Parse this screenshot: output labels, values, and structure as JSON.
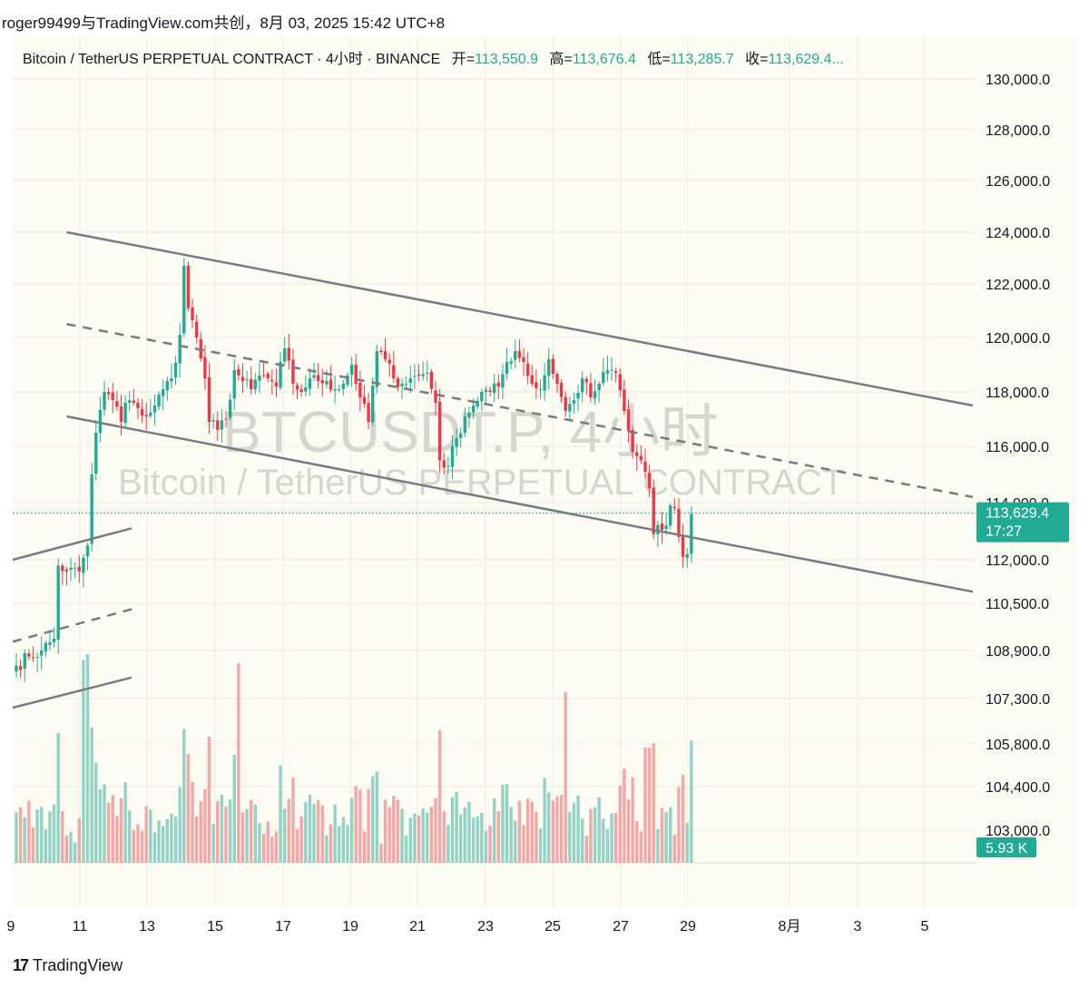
{
  "header": {
    "text": "roger99499与TradingView.com共创，8月 03, 2025 15:42 UTC+8"
  },
  "legend": {
    "symbol": "Bitcoin / TetherUS PERPETUAL CONTRACT · 4小时 · BINANCE",
    "open_label": "开=",
    "open": "113,550.9",
    "high_label": "高=",
    "high": "113,676.4",
    "low_label": "低=",
    "low": "113,285.7",
    "close_label": "收=",
    "close": "113,629.4..."
  },
  "watermark": {
    "line1": "BTCUSDT.P, 4小时",
    "line2": "Bitcoin / TetherUS PERPETUAL CONTRACT"
  },
  "brand": {
    "icon": "17",
    "name": "TradingView"
  },
  "colors": {
    "up": "#22ab94",
    "down": "#f23645",
    "up_vol": "#93d2c6",
    "down_vol": "#f5a6a6",
    "trendline": "#787b86",
    "background": "#fdfcf2"
  },
  "chart_data": {
    "type": "candlestick",
    "symbol": "BTCUSDT.P",
    "timeframe": "4小时",
    "y_ticks": [
      {
        "label": "130,000.0"
      },
      {
        "label": "128,000.0"
      },
      {
        "label": "126,000.0"
      },
      {
        "label": "124,000.0"
      },
      {
        "label": "122,000.0"
      },
      {
        "label": "120,000.0"
      },
      {
        "label": "118,000.0"
      },
      {
        "label": "116,000.0"
      },
      {
        "label": "114,000.0"
      },
      {
        "label": "112,000.0"
      },
      {
        "label": "110,500.0"
      },
      {
        "label": "108,900.0"
      },
      {
        "label": "107,300.0"
      },
      {
        "label": "105,800.0"
      },
      {
        "label": "104,400.0"
      },
      {
        "label": "103,000.0"
      }
    ],
    "x_ticks": [
      "9",
      "11",
      "13",
      "15",
      "17",
      "19",
      "21",
      "23",
      "25",
      "27",
      "29",
      "8月",
      "3",
      "5"
    ],
    "last_price": {
      "value": "113,629.4",
      "countdown": "17:27"
    },
    "volume_label": "5.93 K",
    "waypoints": [
      [
        0,
        108400
      ],
      [
        3,
        108700
      ],
      [
        6,
        108900
      ],
      [
        9,
        109300
      ],
      [
        10,
        111800
      ],
      [
        12,
        111600
      ],
      [
        15,
        111600
      ],
      [
        17,
        112500
      ],
      [
        18,
        115000
      ],
      [
        19,
        116500
      ],
      [
        21,
        118000
      ],
      [
        23,
        117700
      ],
      [
        25,
        116900
      ],
      [
        26,
        117600
      ],
      [
        27,
        117700
      ],
      [
        28,
        117600
      ],
      [
        29,
        117400
      ],
      [
        31,
        117100
      ],
      [
        33,
        117500
      ],
      [
        35,
        118100
      ],
      [
        37,
        118500
      ],
      [
        39,
        120100
      ],
      [
        40,
        122700
      ],
      [
        41,
        121100
      ],
      [
        43,
        120000
      ],
      [
        45,
        118500
      ],
      [
        46,
        116900
      ],
      [
        48,
        116600
      ],
      [
        50,
        117000
      ],
      [
        52,
        118800
      ],
      [
        54,
        118400
      ],
      [
        56,
        118100
      ],
      [
        58,
        118600
      ],
      [
        60,
        118500
      ],
      [
        62,
        118200
      ],
      [
        64,
        119600
      ],
      [
        66,
        118300
      ],
      [
        68,
        118000
      ],
      [
        70,
        118500
      ],
      [
        72,
        118400
      ],
      [
        74,
        118400
      ],
      [
        76,
        118100
      ],
      [
        78,
        118300
      ],
      [
        80,
        119000
      ],
      [
        82,
        117800
      ],
      [
        84,
        116900
      ],
      [
        86,
        119500
      ],
      [
        88,
        119200
      ],
      [
        90,
        118500
      ],
      [
        92,
        118300
      ],
      [
        94,
        118500
      ],
      [
        96,
        118600
      ],
      [
        98,
        118700
      ],
      [
        100,
        117600
      ],
      [
        101,
        115500
      ],
      [
        103,
        115300
      ],
      [
        105,
        116300
      ],
      [
        107,
        117100
      ],
      [
        109,
        117500
      ],
      [
        111,
        118000
      ],
      [
        113,
        118000
      ],
      [
        115,
        118200
      ],
      [
        117,
        119100
      ],
      [
        119,
        119500
      ],
      [
        121,
        119100
      ],
      [
        123,
        118300
      ],
      [
        125,
        118100
      ],
      [
        127,
        119200
      ],
      [
        129,
        118300
      ],
      [
        131,
        117300
      ],
      [
        133,
        117700
      ],
      [
        135,
        118500
      ],
      [
        137,
        117800
      ],
      [
        139,
        118300
      ],
      [
        141,
        118800
      ],
      [
        143,
        118700
      ],
      [
        145,
        117300
      ],
      [
        147,
        115800
      ],
      [
        149,
        115500
      ],
      [
        151,
        114500
      ],
      [
        152,
        112900
      ],
      [
        155,
        113200
      ],
      [
        156,
        113900
      ],
      [
        157,
        113800
      ],
      [
        158,
        112800
      ],
      [
        159,
        112100
      ],
      [
        160,
        112200
      ],
      [
        161,
        113600
      ]
    ],
    "trendlines": [
      {
        "style": "solid",
        "from": {
          "bar": 17,
          "price": 124000
        },
        "to": {
          "bar": 172,
          "price": 117500
        }
      },
      {
        "style": "solid",
        "from": {
          "bar": 17,
          "price": 117100
        },
        "to": {
          "bar": 172,
          "price": 110900
        }
      },
      {
        "style": "dashed",
        "from": {
          "bar": 17,
          "price": 120500
        },
        "to": {
          "bar": 172,
          "price": 114200
        }
      },
      {
        "style": "solid",
        "from": {
          "bar": 0,
          "price": 112000
        },
        "to": {
          "bar": 21,
          "price": 113100
        }
      },
      {
        "style": "dashed",
        "from": {
          "bar": 0,
          "price": 109200
        },
        "to": {
          "bar": 21,
          "price": 110300
        }
      },
      {
        "style": "solid",
        "from": {
          "bar": 0,
          "price": 107000
        },
        "to": {
          "bar": 21,
          "price": 108000
        }
      }
    ]
  }
}
